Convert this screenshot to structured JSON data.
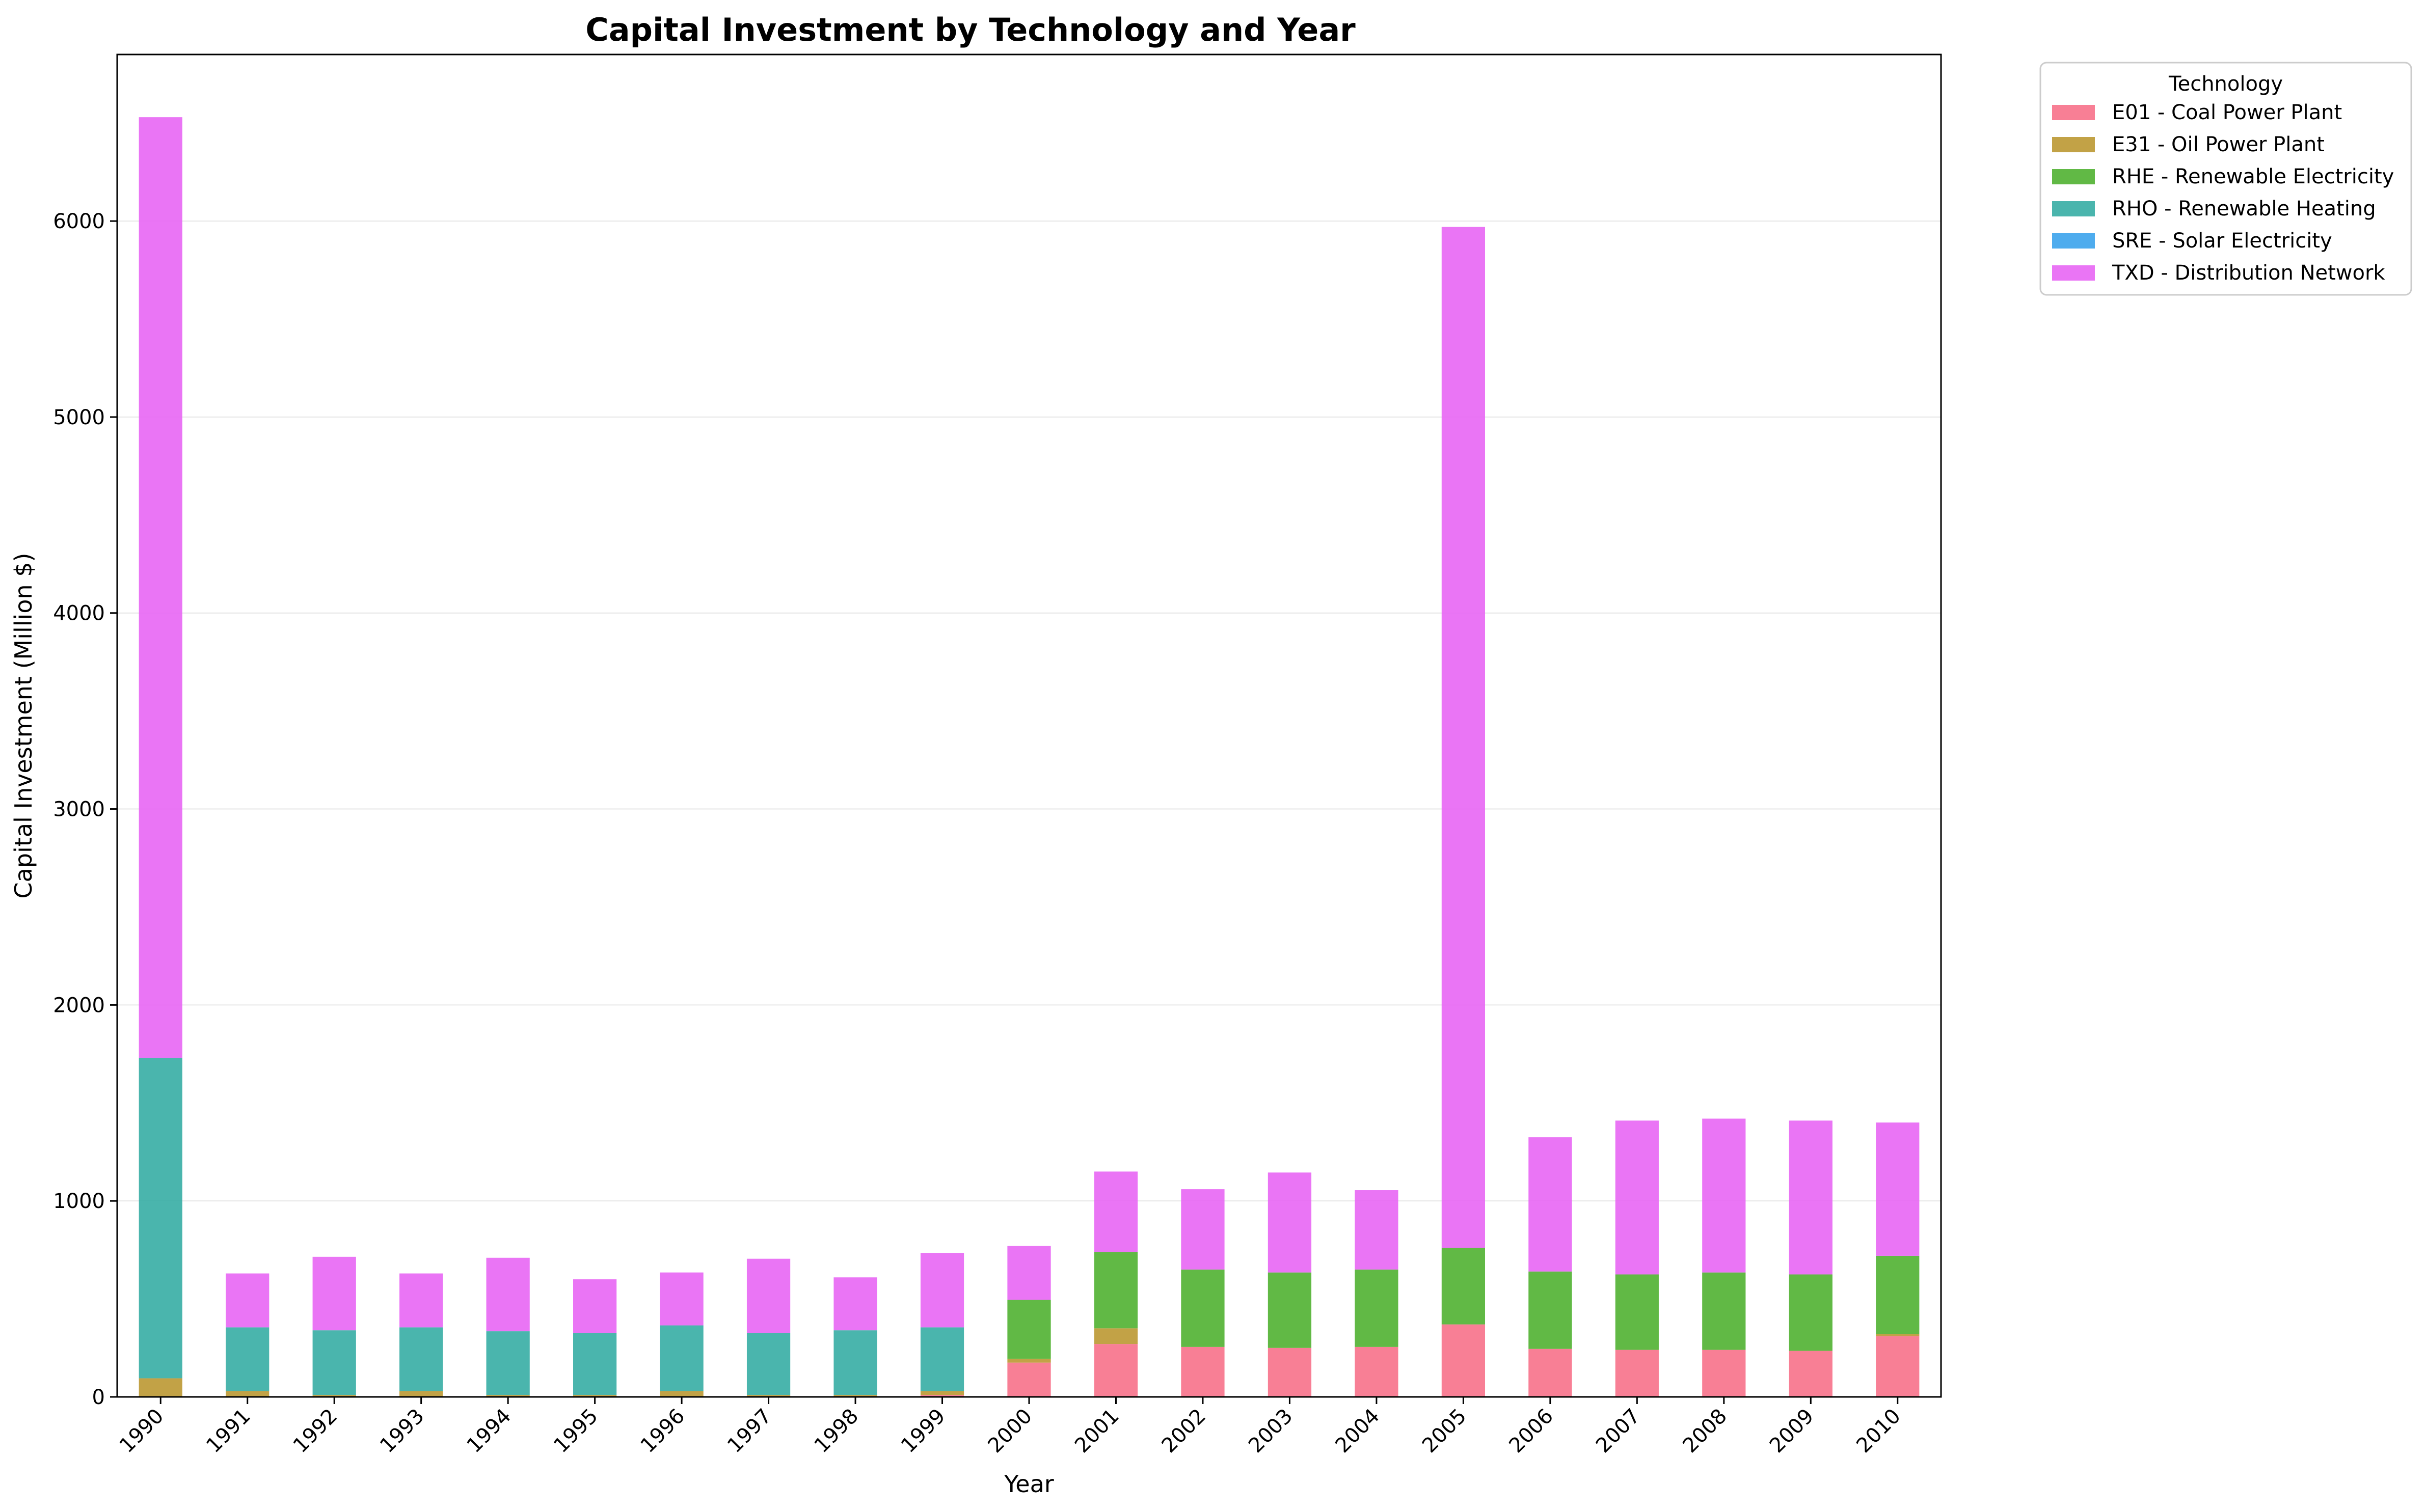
{
  "chart_data": {
    "type": "bar",
    "stacked": true,
    "title": "Capital Investment by Technology and Year",
    "xlabel": "Year",
    "ylabel": "Capital Investment (Million $)",
    "ylim": [
      0,
      6850
    ],
    "yticks": [
      0,
      1000,
      2000,
      3000,
      4000,
      5000,
      6000
    ],
    "grid": "y",
    "legend_title": "Technology",
    "legend_position": "outside top-right",
    "categories": [
      "1990",
      "1991",
      "1992",
      "1993",
      "1994",
      "1995",
      "1996",
      "1997",
      "1998",
      "1999",
      "2000",
      "2001",
      "2002",
      "2003",
      "2004",
      "2005",
      "2006",
      "2007",
      "2008",
      "2009",
      "2010"
    ],
    "series": [
      {
        "name": "E01 - Coal Power Plant",
        "color": "#f77189",
        "values": [
          0,
          0,
          0,
          0,
          0,
          0,
          0,
          0,
          0,
          10,
          175,
          270,
          255,
          250,
          255,
          370,
          245,
          240,
          240,
          235,
          310
        ]
      },
      {
        "name": "E31 - Oil Power Plant",
        "color": "#bb9832",
        "values": [
          95,
          30,
          10,
          30,
          10,
          10,
          30,
          10,
          10,
          20,
          20,
          80,
          0,
          0,
          0,
          0,
          0,
          0,
          0,
          0,
          10
        ]
      },
      {
        "name": "RHE - Renewable Electricity",
        "color": "#50b131",
        "values": [
          0,
          0,
          0,
          0,
          0,
          0,
          0,
          0,
          0,
          0,
          300,
          390,
          395,
          385,
          395,
          390,
          395,
          385,
          395,
          390,
          400
        ]
      },
      {
        "name": "RHO - Renewable Heating",
        "color": "#36ada4",
        "values": [
          1635,
          325,
          330,
          325,
          325,
          315,
          335,
          315,
          330,
          325,
          0,
          0,
          0,
          0,
          0,
          0,
          0,
          0,
          0,
          0,
          0
        ]
      },
      {
        "name": "SRE - Solar Electricity",
        "color": "#3ba3ec",
        "values": [
          0,
          0,
          0,
          0,
          0,
          0,
          0,
          0,
          0,
          0,
          0,
          0,
          0,
          0,
          0,
          0,
          0,
          0,
          0,
          0,
          0
        ]
      },
      {
        "name": "TXD - Distribution Network",
        "color": "#e866f4",
        "values": [
          4800,
          275,
          375,
          275,
          375,
          275,
          270,
          380,
          270,
          380,
          275,
          410,
          410,
          510,
          405,
          5210,
          685,
          785,
          785,
          785,
          680
        ]
      }
    ]
  }
}
